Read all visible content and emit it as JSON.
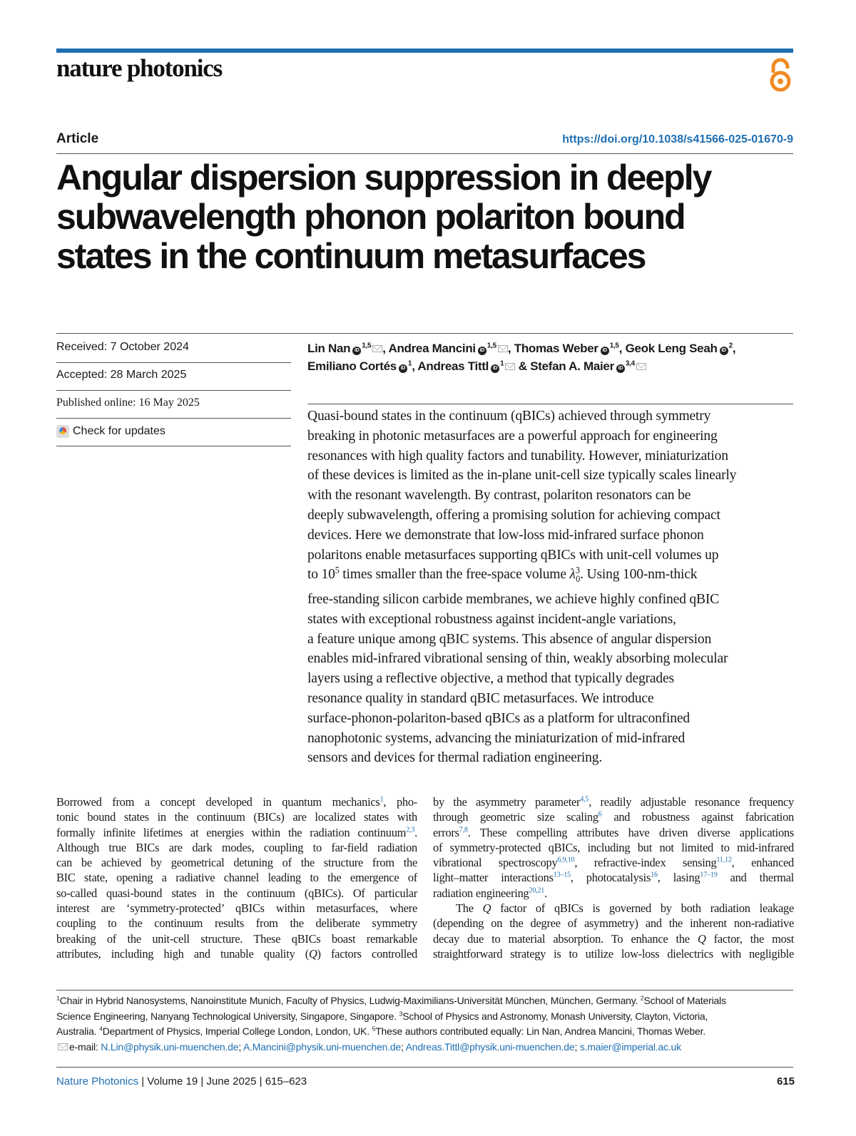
{
  "header": {
    "journal": "nature photonics",
    "article_type": "Article",
    "doi": "https://doi.org/10.1038/s41566-025-01670-9",
    "open_access_icon": "open-access-lock-icon",
    "brand_color": "#1f6fb2",
    "oa_color": "#f08a24"
  },
  "title_lines": [
    "Angular dispersion suppression in deeply",
    "subwavelength phonon polariton bound",
    "states in the continuum metasurfaces"
  ],
  "sidebar": {
    "received": "Received: 7 October 2024",
    "accepted": "Accepted: 28 March 2025",
    "published": "Published online: 16 May 2025",
    "check_updates": "Check for updates"
  },
  "authors": [
    {
      "name": "Lin Nan",
      "aff": "1,5",
      "email": true
    },
    {
      "name": "Andrea Mancini",
      "aff": "1,5",
      "email": true
    },
    {
      "name": "Thomas Weber",
      "aff": "1,5",
      "email": false
    },
    {
      "name": "Geok Leng Seah",
      "aff": "2",
      "email": false
    },
    {
      "name": "Emiliano Cortés",
      "aff": "1",
      "email": false
    },
    {
      "name": "Andreas Tittl",
      "aff": "1",
      "email": true
    },
    {
      "name": "Stefan A. Maier",
      "aff": "3,4",
      "email": true
    }
  ],
  "abstract_lines": [
    "Quasi-bound states in the continuum (qBICs) achieved through symmetry",
    "breaking in photonic metasurfaces are a powerful approach for engineering",
    "resonances with high quality factors and tunability. However, miniaturization",
    "of these devices is limited as the in-plane unit-cell size typically scales linearly",
    "with the resonant wavelength. By contrast, polariton resonators can be",
    "deeply subwavelength, offering a promising solution for achieving compact",
    "devices. Here we demonstrate that low-loss mid-infrared surface phonon",
    "polaritons enable metasurfaces supporting qBICs with unit-cell volumes up",
    [
      {
        "t": "to 10"
      },
      {
        "sup": "5"
      },
      {
        "t": " times smaller than the free-space volume "
      },
      {
        "i": "λ"
      },
      {
        "sup": "3"
      },
      {
        "sub": "0"
      },
      {
        "t": ". Using 100-nm-thick"
      }
    ],
    "free-standing silicon carbide membranes, we achieve highly confined qBIC",
    "states with exceptional robustness against incident-angle variations,",
    "a feature unique among qBIC systems. This absence of angular dispersion",
    "enables mid-infrared vibrational sensing of thin, weakly absorbing molecular",
    "layers using a reflective objective, a method that typically degrades",
    "resonance quality in standard qBIC metasurfaces. We introduce",
    "surface-phonon-polariton-based qBICs as a platform for ultraconfined",
    "nanophotonic systems, advancing the miniaturization of mid-infrared",
    "sensors and devices for thermal radiation engineering."
  ],
  "body_left": [
    [
      {
        "t": "Borrowed from a concept developed in quantum mechanics"
      },
      {
        "ref": "1"
      },
      {
        "t": ", pho-"
      }
    ],
    "tonic bound states in the continuum (BICs) are localized states with",
    [
      {
        "t": "formally infinite lifetimes at energies within the radiation continuum"
      },
      {
        "ref": "2,3"
      },
      {
        "t": "."
      }
    ],
    "Although true BICs are dark modes, coupling to far-field radiation",
    "can be achieved by geometrical detuning of the structure from the",
    "BIC state, opening a radiative channel leading to the emergence of",
    "so-called quasi-bound states in the continuum (qBICs). Of particular",
    "interest are ‘symmetry-protected’ qBICs within metasurfaces, where",
    "coupling to the continuum results from the deliberate symmetry",
    "breaking of the unit-cell structure. These qBICs boast remarkable",
    [
      {
        "t": "attributes, including high and tunable quality ("
      },
      {
        "i": "Q"
      },
      {
        "t": ") factors controlled"
      }
    ]
  ],
  "body_right": [
    [
      {
        "t": "by the asymmetry parameter"
      },
      {
        "ref": "4,5"
      },
      {
        "t": ", readily adjustable resonance frequency"
      }
    ],
    [
      {
        "t": "through geometric size scaling"
      },
      {
        "ref": "6"
      },
      {
        "t": " and robustness against fabrication"
      }
    ],
    [
      {
        "t": "errors"
      },
      {
        "ref": "7,8"
      },
      {
        "t": ". These compelling attributes have driven diverse applications"
      }
    ],
    "of symmetry-protected qBICs, including but not limited to mid-infrared",
    [
      {
        "t": "vibrational spectroscopy"
      },
      {
        "ref": "6,9,10"
      },
      {
        "t": ", refractive-index sensing"
      },
      {
        "ref": "11,12"
      },
      {
        "t": ", enhanced"
      }
    ],
    [
      {
        "t": "light–matter interactions"
      },
      {
        "ref": "13–15"
      },
      {
        "t": ", photocatalysis"
      },
      {
        "ref": "16"
      },
      {
        "t": ", lasing"
      },
      {
        "ref": "17–19"
      },
      {
        "t": " and thermal"
      }
    ],
    [
      {
        "t": "radiation engineering"
      },
      {
        "ref": "20,21"
      },
      {
        "t": "."
      }
    ],
    [
      {
        "t": "The "
      },
      {
        "i": "Q"
      },
      {
        "t": " factor of qBICs is governed by both radiation leakage"
      }
    ],
    "(depending on the degree of asymmetry) and the inherent non-radiative",
    [
      {
        "t": "decay due to material absorption. To enhance the "
      },
      {
        "i": "Q"
      },
      {
        "t": " factor, the most"
      }
    ],
    "straightforward strategy is to utilize low-loss dielectrics with negligible"
  ],
  "footnotes": [
    [
      {
        "sup": "1"
      },
      {
        "t": "Chair in Hybrid Nanosystems, Nanoinstitute Munich, Faculty of Physics, Ludwig-Maximilians-Universität München, München, Germany. "
      },
      {
        "sup": "2"
      },
      {
        "t": "School of Materials"
      }
    ],
    [
      {
        "t": "Science Engineering, Nanyang Technological University, Singapore, Singapore. "
      },
      {
        "sup": "3"
      },
      {
        "t": "School of Physics and Astronomy, Monash University, Clayton, Victoria,"
      }
    ],
    [
      {
        "t": "Australia. "
      },
      {
        "sup": "4"
      },
      {
        "t": "Department of Physics, Imperial College London, London, UK. "
      },
      {
        "sup": "5"
      },
      {
        "t": "These authors contributed equally: Lin Nan, Andrea Mancini, Thomas Weber."
      }
    ],
    [
      {
        "mail": true
      },
      {
        "t": "e-mail: "
      },
      {
        "a": "N.Lin@physik.uni-muenchen.de"
      },
      {
        "t": "; "
      },
      {
        "a": "A.Mancini@physik.uni-muenchen.de"
      },
      {
        "t": "; "
      },
      {
        "a": "Andreas.Tittl@physik.uni-muenchen.de"
      },
      {
        "t": "; "
      },
      {
        "a": "s.maier@imperial.ac.uk"
      }
    ]
  ],
  "footer": {
    "journal": "Nature Photonics",
    "rest": " | Volume 19 | June 2025 | 615–623",
    "page": "615"
  }
}
